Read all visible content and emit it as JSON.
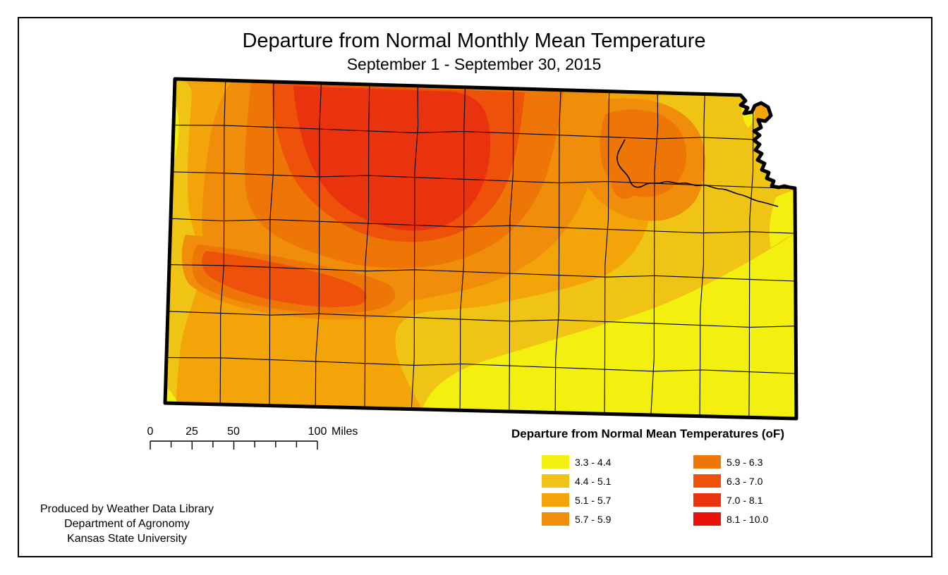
{
  "title": "Departure from Normal Monthly Mean Temperature",
  "subtitle": "September 1 - September 30, 2015",
  "legend": {
    "title": "Departure from Normal Mean Temperatures (oF)",
    "columns": [
      {
        "items": [
          {
            "range": "3.3 - 4.4",
            "color": "#f3f00f"
          },
          {
            "range": "4.4 - 5.1",
            "color": "#f0c414"
          },
          {
            "range": "5.1 - 5.7",
            "color": "#f3a409"
          },
          {
            "range": "5.7 - 5.9",
            "color": "#f08d0a"
          }
        ]
      },
      {
        "items": [
          {
            "range": "5.9 - 6.3",
            "color": "#ee7607"
          },
          {
            "range": "6.3 - 7.0",
            "color": "#ed510a"
          },
          {
            "range": "7.0 - 8.1",
            "color": "#e9330e"
          },
          {
            "range": "8.1 - 10.0",
            "color": "#e8120b"
          }
        ]
      }
    ]
  },
  "scalebar": {
    "labels": [
      "0",
      "25",
      "50",
      "100"
    ],
    "unit": "Miles"
  },
  "credits": {
    "line1": "Produced by Weather Data Library",
    "line2": "Department of Agronomy",
    "line3": "Kansas State University"
  }
}
